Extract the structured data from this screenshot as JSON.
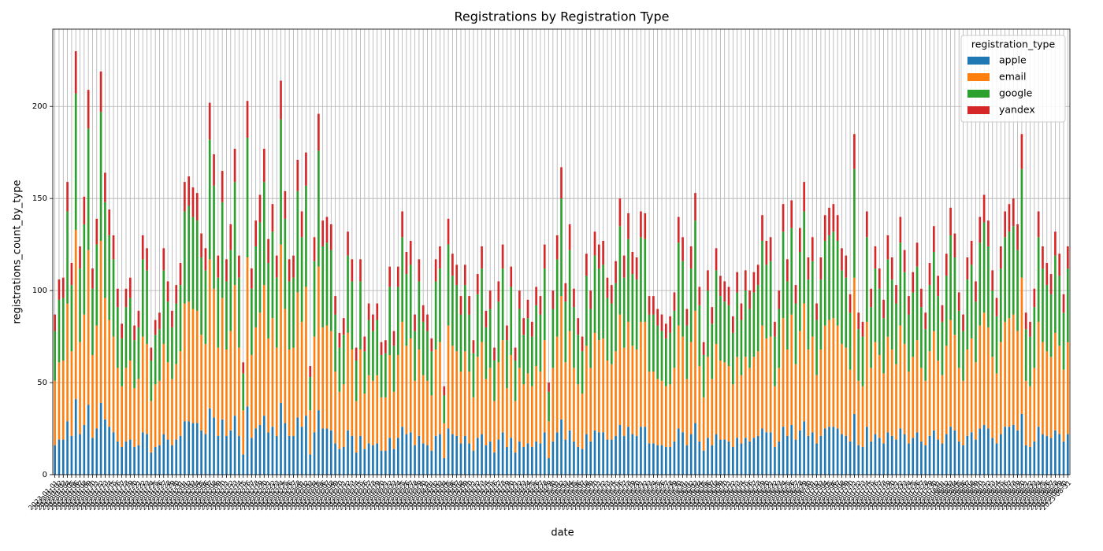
{
  "chart_data": {
    "type": "stacked_bar",
    "title": "Registrations by Registration Type",
    "x_label": "date",
    "y_label": "registrations_count_by_type",
    "legend_title": "registration_type",
    "legend_position": "upper right",
    "grid": true,
    "ylim": [
      0,
      242
    ],
    "yticks": [
      0,
      50,
      100,
      150,
      200
    ],
    "categories": [
      "2023-01-01",
      "2023-01-02",
      "2023-01-03",
      "2023-01-04",
      "2023-01-05",
      "2023-01-06",
      "2023-01-07",
      "2023-01-08",
      "2023-01-09",
      "2023-01-10",
      "2023-01-11",
      "2023-01-12",
      "2023-01-13",
      "2023-01-14",
      "2023-01-15",
      "2023-01-16",
      "2023-01-17",
      "2023-01-18",
      "2023-01-19",
      "2023-01-20",
      "2023-01-21",
      "2023-01-22",
      "2023-01-23",
      "2023-01-24",
      "2023-01-25",
      "2023-01-26",
      "2023-01-27",
      "2023-01-28",
      "2023-01-29",
      "2023-01-30",
      "2023-01-31",
      "2023-02-01",
      "2023-02-02",
      "2023-02-03",
      "2023-02-04",
      "2023-02-05",
      "2023-02-06",
      "2023-02-07",
      "2023-02-08",
      "2023-02-09",
      "2023-02-10",
      "2023-02-11",
      "2023-02-12",
      "2023-02-13",
      "2023-02-14",
      "2023-02-15",
      "2023-02-16",
      "2023-02-17",
      "2023-02-18",
      "2023-02-19",
      "2023-02-20",
      "2023-02-21",
      "2023-02-22",
      "2023-02-23",
      "2023-02-24",
      "2023-02-25",
      "2023-02-26",
      "2023-02-27",
      "2023-02-28",
      "2023-03-01",
      "2023-03-02",
      "2023-03-03",
      "2023-03-04",
      "2023-03-05",
      "2023-03-06",
      "2023-03-07",
      "2023-03-08",
      "2023-03-09",
      "2023-03-10",
      "2023-03-11",
      "2023-03-12",
      "2023-03-13",
      "2023-03-14",
      "2023-03-15",
      "2023-03-16",
      "2023-03-17",
      "2023-03-18",
      "2023-03-19",
      "2023-03-20",
      "2023-03-21",
      "2023-03-22",
      "2023-03-23",
      "2023-03-24",
      "2023-03-25",
      "2023-03-26",
      "2023-03-27",
      "2023-03-28",
      "2023-03-29",
      "2023-03-30",
      "2023-03-31",
      "2023-04-01",
      "2023-04-02",
      "2023-04-03",
      "2023-04-04",
      "2023-04-05",
      "2023-04-06",
      "2023-04-07",
      "2023-04-08",
      "2023-04-09",
      "2023-04-10",
      "2023-04-11",
      "2023-04-12",
      "2023-04-13",
      "2023-04-14",
      "2023-04-15",
      "2023-04-16",
      "2023-04-17",
      "2023-04-18",
      "2023-04-19",
      "2023-04-20",
      "2023-04-21",
      "2023-04-22",
      "2023-04-23",
      "2023-04-24",
      "2023-04-25",
      "2023-04-26",
      "2023-04-27",
      "2023-04-28",
      "2023-04-29",
      "2023-04-30",
      "2023-05-01",
      "2023-05-02",
      "2023-05-03",
      "2023-05-04",
      "2023-05-05",
      "2023-05-06",
      "2023-05-07",
      "2023-05-08",
      "2023-05-09",
      "2023-05-10",
      "2023-05-11",
      "2023-05-12",
      "2023-05-13",
      "2023-05-14",
      "2023-05-15",
      "2023-05-16",
      "2023-05-17",
      "2023-05-18",
      "2023-05-19",
      "2023-05-20",
      "2023-05-21",
      "2023-05-22",
      "2023-05-23",
      "2023-05-24",
      "2023-05-25",
      "2023-05-26",
      "2023-05-27",
      "2023-05-28",
      "2023-05-29",
      "2023-05-30",
      "2023-05-31",
      "2023-06-01",
      "2023-06-02",
      "2023-06-03",
      "2023-06-04",
      "2023-06-05",
      "2023-06-06",
      "2023-06-07",
      "2023-06-08",
      "2023-06-09",
      "2023-06-10",
      "2023-06-11",
      "2023-06-12",
      "2023-06-13",
      "2023-06-14",
      "2023-06-15",
      "2023-06-16",
      "2023-06-17",
      "2023-06-18",
      "2023-06-19",
      "2023-06-20",
      "2023-06-21",
      "2023-06-22",
      "2023-06-23",
      "2023-06-24",
      "2023-06-25",
      "2023-06-26",
      "2023-06-27",
      "2023-06-28",
      "2023-06-29",
      "2023-06-30",
      "2023-07-01",
      "2023-07-02",
      "2023-07-03",
      "2023-07-04",
      "2023-07-05",
      "2023-07-06",
      "2023-07-07",
      "2023-07-08",
      "2023-07-09",
      "2023-07-10",
      "2023-07-11",
      "2023-07-12",
      "2023-07-13",
      "2023-07-14",
      "2023-07-15",
      "2023-07-16",
      "2023-07-17",
      "2023-07-18",
      "2023-07-19",
      "2023-07-20",
      "2023-07-21",
      "2023-07-22",
      "2023-07-23",
      "2023-07-24",
      "2023-07-25",
      "2023-07-26",
      "2023-07-27",
      "2023-07-28",
      "2023-07-29",
      "2023-07-30",
      "2023-07-31",
      "2023-08-01",
      "2023-08-02",
      "2023-08-03",
      "2023-08-04",
      "2023-08-05",
      "2023-08-06",
      "2023-08-07",
      "2023-08-08",
      "2023-08-09",
      "2023-08-10",
      "2023-08-11",
      "2023-08-12",
      "2023-08-13",
      "2023-08-14",
      "2023-08-15",
      "2023-08-16",
      "2023-08-17",
      "2023-08-18",
      "2023-08-19",
      "2023-08-20",
      "2023-08-21",
      "2023-08-22",
      "2023-08-23",
      "2023-08-24",
      "2023-08-25",
      "2023-08-26",
      "2023-08-27",
      "2023-08-28",
      "2023-08-29",
      "2023-08-30",
      "2023-08-31"
    ],
    "series": [
      {
        "name": "apple",
        "color": "#1f77b4",
        "values": [
          16,
          19,
          19,
          29,
          21,
          41,
          22,
          27,
          38,
          20,
          25,
          39,
          30,
          26,
          23,
          18,
          15,
          18,
          19,
          15,
          16,
          23,
          22,
          12,
          15,
          16,
          22,
          19,
          16,
          19,
          21,
          29,
          29,
          28,
          28,
          24,
          22,
          36,
          31,
          21,
          30,
          21,
          24,
          32,
          21,
          11,
          37,
          20,
          25,
          27,
          32,
          23,
          26,
          21,
          39,
          28,
          21,
          21,
          31,
          26,
          32,
          11,
          23,
          35,
          25,
          25,
          24,
          17,
          14,
          15,
          24,
          21,
          12,
          21,
          14,
          17,
          16,
          17,
          13,
          13,
          20,
          14,
          20,
          26,
          22,
          23,
          16,
          21,
          17,
          16,
          13,
          21,
          22,
          9,
          25,
          22,
          21,
          17,
          21,
          17,
          13,
          20,
          22,
          16,
          18,
          12,
          19,
          23,
          15,
          20,
          12,
          18,
          15,
          17,
          15,
          18,
          17,
          23,
          9,
          18,
          23,
          30,
          19,
          24,
          18,
          15,
          14,
          22,
          18,
          24,
          23,
          23,
          19,
          19,
          21,
          27,
          21,
          26,
          22,
          21,
          26,
          26,
          17,
          17,
          16,
          16,
          15,
          15,
          18,
          25,
          23,
          16,
          22,
          28,
          18,
          13,
          20,
          16,
          22,
          19,
          19,
          18,
          15,
          20,
          17,
          20,
          18,
          20,
          21,
          25,
          23,
          23,
          15,
          18,
          26,
          21,
          27,
          19,
          24,
          29,
          21,
          23,
          17,
          21,
          25,
          26,
          26,
          25,
          22,
          21,
          18,
          33,
          16,
          15,
          26,
          18,
          22,
          20,
          17,
          23,
          21,
          19,
          25,
          22,
          17,
          20,
          23,
          18,
          16,
          21,
          24,
          19,
          17,
          22,
          26,
          24,
          18,
          16,
          21,
          23,
          19,
          25,
          27,
          25,
          20,
          17,
          22,
          26,
          26,
          27,
          24,
          33,
          16,
          15,
          18,
          26,
          22,
          21,
          20,
          24,
          22,
          18,
          22
        ]
      },
      {
        "name": "email",
        "color": "#ff7f0e",
        "values": [
          35,
          42,
          43,
          64,
          46,
          92,
          50,
          60,
          84,
          45,
          56,
          88,
          66,
          58,
          52,
          40,
          33,
          40,
          43,
          32,
          36,
          52,
          49,
          28,
          34,
          35,
          49,
          42,
          36,
          41,
          46,
          64,
          65,
          62,
          61,
          52,
          49,
          81,
          70,
          48,
          66,
          47,
          54,
          71,
          48,
          24,
          81,
          45,
          55,
          61,
          71,
          51,
          59,
          48,
          86,
          62,
          47,
          48,
          68,
          57,
          70,
          24,
          52,
          78,
          55,
          56,
          54,
          39,
          31,
          34,
          53,
          47,
          28,
          47,
          30,
          37,
          35,
          37,
          29,
          29,
          45,
          31,
          45,
          57,
          48,
          51,
          35,
          47,
          37,
          35,
          30,
          47,
          50,
          19,
          56,
          48,
          46,
          39,
          46,
          39,
          29,
          44,
          50,
          36,
          40,
          28,
          42,
          50,
          32,
          45,
          28,
          40,
          34,
          38,
          33,
          41,
          39,
          50,
          20,
          40,
          52,
          67,
          42,
          54,
          40,
          34,
          30,
          48,
          40,
          53,
          50,
          51,
          43,
          41,
          46,
          60,
          48,
          57,
          48,
          47,
          57,
          57,
          39,
          39,
          36,
          35,
          33,
          34,
          40,
          56,
          52,
          36,
          50,
          61,
          41,
          29,
          44,
          36,
          49,
          43,
          42,
          41,
          34,
          44,
          37,
          44,
          40,
          44,
          46,
          56,
          51,
          52,
          33,
          40,
          59,
          47,
          60,
          41,
          54,
          64,
          47,
          52,
          37,
          47,
          56,
          58,
          59,
          56,
          49,
          48,
          39,
          74,
          35,
          33,
          57,
          40,
          50,
          45,
          38,
          52,
          47,
          41,
          56,
          49,
          39,
          44,
          50,
          40,
          35,
          46,
          54,
          43,
          37,
          48,
          58,
          52,
          40,
          35,
          47,
          51,
          42,
          56,
          61,
          55,
          44,
          38,
          50,
          57,
          59,
          60,
          54,
          74,
          35,
          33,
          40,
          57,
          50,
          46,
          44,
          53,
          48,
          39,
          50
        ]
      },
      {
        "name": "google",
        "color": "#2ca02c",
        "values": [
          27,
          34,
          34,
          50,
          36,
          74,
          40,
          49,
          66,
          36,
          44,
          70,
          52,
          46,
          42,
          33,
          26,
          33,
          34,
          26,
          28,
          42,
          40,
          22,
          27,
          28,
          40,
          33,
          28,
          33,
          36,
          50,
          52,
          50,
          49,
          42,
          40,
          65,
          56,
          38,
          52,
          37,
          44,
          56,
          38,
          20,
          65,
          36,
          44,
          49,
          56,
          41,
          47,
          38,
          68,
          49,
          37,
          38,
          55,
          46,
          55,
          18,
          41,
          63,
          44,
          45,
          44,
          31,
          24,
          27,
          42,
          37,
          22,
          37,
          23,
          30,
          27,
          30,
          23,
          24,
          37,
          25,
          37,
          46,
          39,
          40,
          27,
          37,
          29,
          27,
          24,
          37,
          40,
          15,
          44,
          38,
          36,
          31,
          36,
          31,
          24,
          34,
          40,
          28,
          32,
          22,
          33,
          39,
          26,
          37,
          22,
          32,
          27,
          30,
          27,
          33,
          31,
          39,
          16,
          32,
          42,
          53,
          33,
          44,
          33,
          27,
          23,
          38,
          32,
          42,
          39,
          40,
          34,
          33,
          37,
          48,
          38,
          45,
          39,
          38,
          46,
          45,
          31,
          31,
          29,
          27,
          26,
          28,
          31,
          45,
          41,
          29,
          40,
          49,
          33,
          23,
          36,
          30,
          40,
          35,
          33,
          33,
          28,
          35,
          30,
          36,
          32,
          35,
          36,
          46,
          40,
          41,
          27,
          32,
          47,
          37,
          47,
          33,
          43,
          50,
          38,
          41,
          30,
          38,
          46,
          46,
          47,
          46,
          40,
          38,
          31,
          59,
          28,
          27,
          46,
          33,
          40,
          36,
          30,
          42,
          38,
          33,
          45,
          39,
          31,
          35,
          40,
          33,
          28,
          36,
          43,
          35,
          29,
          38,
          46,
          42,
          31,
          27,
          38,
          40,
          33,
          45,
          49,
          44,
          36,
          31,
          40,
          46,
          47,
          48,
          44,
          59,
          28,
          27,
          33,
          46,
          40,
          36,
          34,
          42,
          38,
          31,
          40
        ]
      },
      {
        "name": "yandex",
        "color": "#d62728",
        "values": [
          9,
          11,
          11,
          16,
          12,
          23,
          12,
          15,
          21,
          11,
          14,
          22,
          16,
          14,
          13,
          10,
          8,
          10,
          11,
          8,
          9,
          13,
          12,
          7,
          8,
          9,
          12,
          11,
          9,
          10,
          12,
          16,
          16,
          16,
          15,
          13,
          12,
          20,
          17,
          12,
          17,
          12,
          14,
          18,
          12,
          6,
          20,
          11,
          14,
          15,
          18,
          13,
          15,
          12,
          21,
          15,
          12,
          12,
          17,
          14,
          18,
          6,
          13,
          20,
          14,
          14,
          14,
          10,
          8,
          9,
          13,
          12,
          7,
          12,
          8,
          9,
          9,
          9,
          7,
          7,
          11,
          8,
          11,
          14,
          12,
          13,
          9,
          12,
          9,
          9,
          7,
          12,
          12,
          5,
          14,
          12,
          11,
          10,
          11,
          10,
          7,
          11,
          12,
          9,
          10,
          7,
          11,
          13,
          8,
          11,
          7,
          10,
          9,
          10,
          8,
          10,
          10,
          13,
          5,
          10,
          13,
          17,
          10,
          14,
          10,
          9,
          8,
          12,
          10,
          13,
          13,
          13,
          11,
          10,
          12,
          15,
          12,
          14,
          12,
          12,
          14,
          14,
          10,
          10,
          9,
          9,
          8,
          9,
          10,
          14,
          13,
          9,
          12,
          15,
          10,
          7,
          11,
          9,
          12,
          11,
          11,
          10,
          9,
          11,
          9,
          11,
          10,
          11,
          11,
          14,
          13,
          13,
          8,
          10,
          15,
          12,
          15,
          10,
          13,
          16,
          12,
          13,
          9,
          12,
          14,
          15,
          15,
          14,
          12,
          12,
          10,
          19,
          9,
          8,
          14,
          10,
          12,
          11,
          10,
          13,
          12,
          10,
          14,
          12,
          10,
          11,
          13,
          10,
          9,
          12,
          14,
          11,
          9,
          12,
          15,
          13,
          10,
          9,
          12,
          13,
          11,
          14,
          15,
          14,
          11,
          10,
          12,
          14,
          15,
          15,
          14,
          19,
          9,
          8,
          10,
          14,
          12,
          12,
          11,
          13,
          12,
          10,
          12
        ]
      }
    ]
  }
}
